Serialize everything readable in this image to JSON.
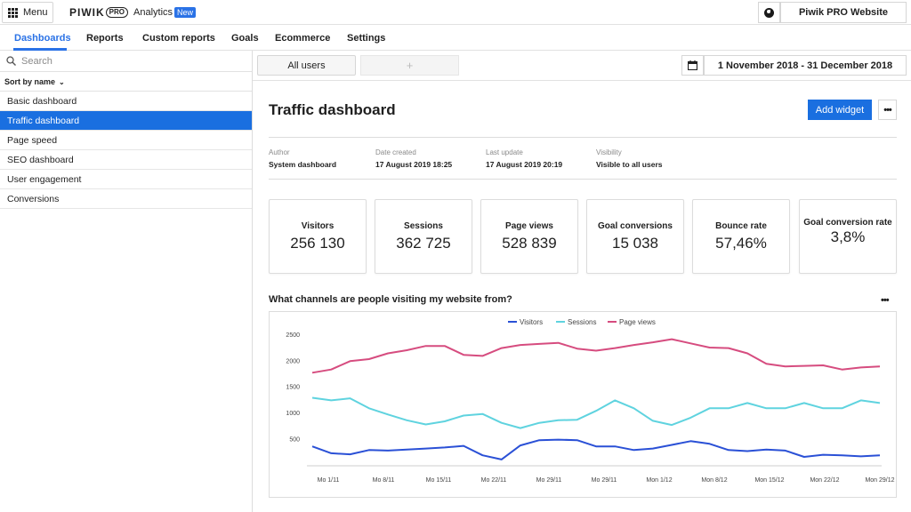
{
  "topbar": {
    "menu_label": "Menu",
    "logo_text": "PIWIK",
    "logo_pro": "PRO",
    "app_name": "Analytics",
    "new_badge": "New",
    "site_name": "Piwik PRO Website"
  },
  "nav": {
    "items": [
      {
        "label": "Dashboards"
      },
      {
        "label": "Reports"
      },
      {
        "label": "Custom reports"
      },
      {
        "label": "Goals"
      },
      {
        "label": "Ecommerce"
      },
      {
        "label": "Settings"
      }
    ]
  },
  "sidebar": {
    "search_placeholder": "Search",
    "sort_label": "Sort by name",
    "items": [
      {
        "label": "Basic dashboard"
      },
      {
        "label": "Traffic dashboard"
      },
      {
        "label": "Page speed"
      },
      {
        "label": "SEO dashboard"
      },
      {
        "label": "User engagement"
      },
      {
        "label": "Conversions"
      }
    ]
  },
  "tabs": {
    "all_users": "All users",
    "add": "+"
  },
  "date_range": "1 November 2018 - 31 December 2018",
  "dashboard": {
    "title": "Traffic dashboard",
    "add_widget": "Add widget",
    "more": "•••",
    "meta": [
      {
        "key": "Author",
        "value": "System dashboard"
      },
      {
        "key": "Date created",
        "value": "17 August 2019 18:25"
      },
      {
        "key": "Last update",
        "value": "17 August 2019 20:19"
      },
      {
        "key": "Visibility",
        "value": "Visible to all users"
      }
    ]
  },
  "kpis": [
    {
      "label": "Visitors",
      "value": "256 130"
    },
    {
      "label": "Sessions",
      "value": "362 725"
    },
    {
      "label": "Page views",
      "value": "528 839"
    },
    {
      "label": "Goal conversions",
      "value": "15 038"
    },
    {
      "label": "Bounce rate",
      "value": "57,46%"
    },
    {
      "label": "Goal conversion rate",
      "value": "3,8%"
    }
  ],
  "chart_widget": {
    "title": "What channels are people visiting my website from?",
    "more": "•••"
  },
  "chart_data": {
    "type": "line",
    "x_labels": [
      "Mo 1/11",
      "Mo 8/11",
      "Mo 15/11",
      "Mo 22/11",
      "Mo 29/11",
      "Mo 29/11",
      "Mon 1/12",
      "Mon 8/12",
      "Mon 15/12",
      "Mon 22/12",
      "Mon 29/12"
    ],
    "ylim": [
      0,
      2500
    ],
    "yticks": [
      500,
      1000,
      1500,
      2000,
      2500
    ],
    "legend_position": "top-center",
    "grid": false,
    "points_per_series": 31,
    "series": [
      {
        "name": "Visitors",
        "color": "#2a50d6",
        "values": [
          370,
          240,
          220,
          300,
          290,
          310,
          330,
          350,
          380,
          200,
          120,
          390,
          490,
          500,
          490,
          370,
          370,
          300,
          330,
          400,
          470,
          420,
          300,
          280,
          310,
          290,
          170,
          210,
          200,
          180,
          200
        ]
      },
      {
        "name": "Sessions",
        "color": "#5fd3df",
        "values": [
          1300,
          1250,
          1290,
          1100,
          980,
          870,
          790,
          850,
          960,
          990,
          820,
          720,
          820,
          870,
          880,
          1050,
          1250,
          1100,
          860,
          780,
          920,
          1100,
          1100,
          1200,
          1100,
          1100,
          1200,
          1100,
          1100,
          1250,
          1200
        ]
      },
      {
        "name": "Page views",
        "color": "#d64c7f",
        "values": [
          1780,
          1840,
          2000,
          2040,
          2150,
          2210,
          2290,
          2290,
          2120,
          2100,
          2250,
          2310,
          2330,
          2350,
          2240,
          2200,
          2250,
          2310,
          2360,
          2420,
          2340,
          2260,
          2250,
          2150,
          1950,
          1900,
          1910,
          1920,
          1840,
          1880,
          1900
        ]
      }
    ]
  }
}
